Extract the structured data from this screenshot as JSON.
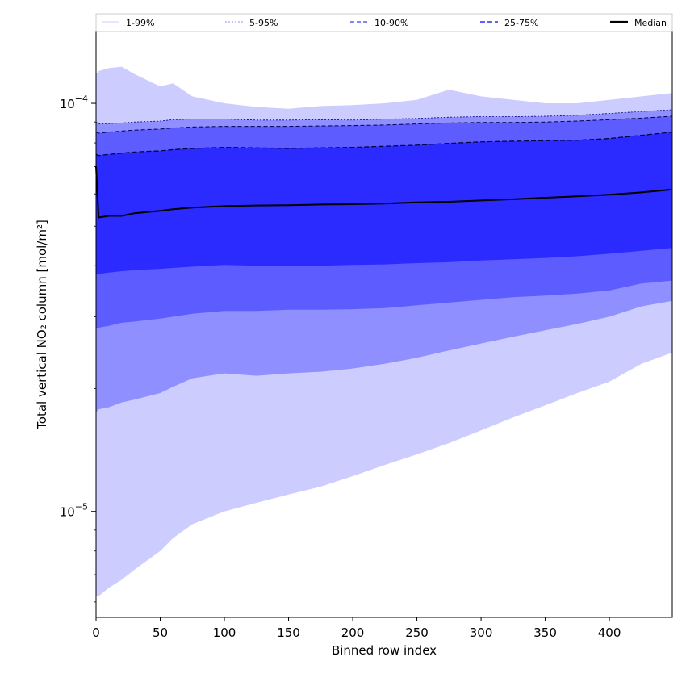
{
  "chart_data": {
    "type": "area",
    "xlabel": "Binned row index",
    "ylabel": "Total vertical NO₂ column [mol/m²]",
    "xlim": [
      0,
      449
    ],
    "ylim": [
      5.5e-06,
      0.00015
    ],
    "yscale": "log",
    "grid": false,
    "legend_position": "top (above plot, single row)",
    "x_ticks": [
      0,
      50,
      100,
      150,
      200,
      250,
      300,
      350,
      400
    ],
    "y_tick_labels": [
      {
        "value": 1e-05,
        "base": "10",
        "exp": "−5"
      },
      {
        "value": 0.0001,
        "base": "10",
        "exp": "−4"
      }
    ],
    "x": [
      0,
      2,
      10,
      20,
      30,
      50,
      60,
      75,
      100,
      125,
      150,
      175,
      200,
      225,
      250,
      275,
      300,
      325,
      350,
      375,
      400,
      425,
      449
    ],
    "series": [
      {
        "name": "1-99%",
        "color": "#ccccff",
        "lower": [
          6.2e-06,
          6.2e-06,
          6.5e-06,
          6.8e-06,
          7.2e-06,
          8e-06,
          8.6e-06,
          9.3e-06,
          1e-05,
          1.05e-05,
          1.1e-05,
          1.15e-05,
          1.22e-05,
          1.3e-05,
          1.38e-05,
          1.47e-05,
          1.58e-05,
          1.7e-05,
          1.82e-05,
          1.95e-05,
          2.08e-05,
          2.3e-05,
          2.45e-05
        ],
        "upper": [
          0.000118,
          0.00012,
          0.000122,
          0.000123,
          0.000118,
          0.00011,
          0.000112,
          0.000104,
          0.0001,
          9.8e-05,
          9.7e-05,
          9.85e-05,
          9.9e-05,
          0.0001,
          0.000102,
          0.000108,
          0.000104,
          0.000102,
          0.0001,
          0.0001,
          0.000102,
          0.000104,
          0.000106
        ]
      },
      {
        "name": "5-95%",
        "color": "#8f8fff",
        "lower": [
          1.75e-05,
          1.78e-05,
          1.8e-05,
          1.85e-05,
          1.88e-05,
          1.95e-05,
          2.02e-05,
          2.12e-05,
          2.18e-05,
          2.15e-05,
          2.18e-05,
          2.2e-05,
          2.24e-05,
          2.3e-05,
          2.38e-05,
          2.48e-05,
          2.58e-05,
          2.68e-05,
          2.78e-05,
          2.88e-05,
          3e-05,
          3.18e-05,
          3.28e-05
        ],
        "upper": [
          9e-05,
          8.9e-05,
          8.92e-05,
          8.95e-05,
          9e-05,
          9.05e-05,
          9.12e-05,
          9.15e-05,
          9.15e-05,
          9.1e-05,
          9.1e-05,
          9.12e-05,
          9.1e-05,
          9.15e-05,
          9.18e-05,
          9.25e-05,
          9.28e-05,
          9.28e-05,
          9.3e-05,
          9.35e-05,
          9.45e-05,
          9.55e-05,
          9.65e-05
        ]
      },
      {
        "name": "10-90%",
        "color": "#5c5cff",
        "lower": [
          2.8e-05,
          2.82e-05,
          2.85e-05,
          2.9e-05,
          2.92e-05,
          2.97e-05,
          3e-05,
          3.05e-05,
          3.1e-05,
          3.1e-05,
          3.12e-05,
          3.12e-05,
          3.13e-05,
          3.15e-05,
          3.2e-05,
          3.25e-05,
          3.3e-05,
          3.35e-05,
          3.38e-05,
          3.42e-05,
          3.48e-05,
          3.62e-05,
          3.68e-05
        ],
        "upper": [
          8.5e-05,
          8.45e-05,
          8.5e-05,
          8.55e-05,
          8.6e-05,
          8.65e-05,
          8.7e-05,
          8.75e-05,
          8.78e-05,
          8.78e-05,
          8.78e-05,
          8.8e-05,
          8.82e-05,
          8.85e-05,
          8.9e-05,
          8.95e-05,
          8.98e-05,
          8.98e-05,
          9e-05,
          9.05e-05,
          9.12e-05,
          9.2e-05,
          9.3e-05
        ]
      },
      {
        "name": "25-75%",
        "color": "#2b2bff",
        "lower": [
          3.8e-05,
          3.82e-05,
          3.85e-05,
          3.88e-05,
          3.9e-05,
          3.93e-05,
          3.95e-05,
          3.98e-05,
          4.02e-05,
          4e-05,
          4e-05,
          4e-05,
          4.02e-05,
          4.03e-05,
          4.06e-05,
          4.08e-05,
          4.12e-05,
          4.15e-05,
          4.18e-05,
          4.22e-05,
          4.28e-05,
          4.35e-05,
          4.42e-05
        ],
        "upper": [
          7.5e-05,
          7.45e-05,
          7.5e-05,
          7.55e-05,
          7.6e-05,
          7.65e-05,
          7.7e-05,
          7.75e-05,
          7.8e-05,
          7.78e-05,
          7.75e-05,
          7.78e-05,
          7.8e-05,
          7.85e-05,
          7.9e-05,
          7.98e-05,
          8.05e-05,
          8.08e-05,
          8.1e-05,
          8.12e-05,
          8.2e-05,
          8.35e-05,
          8.5e-05
        ]
      },
      {
        "name": "Median",
        "color": "#000000",
        "values": [
          7e-05,
          5.25e-05,
          5.3e-05,
          5.3e-05,
          5.38e-05,
          5.45e-05,
          5.5e-05,
          5.55e-05,
          5.6e-05,
          5.62e-05,
          5.63e-05,
          5.65e-05,
          5.66e-05,
          5.68e-05,
          5.72e-05,
          5.74e-05,
          5.78e-05,
          5.82e-05,
          5.87e-05,
          5.92e-05,
          5.97e-05,
          6.05e-05,
          6.15e-05
        ]
      }
    ]
  }
}
